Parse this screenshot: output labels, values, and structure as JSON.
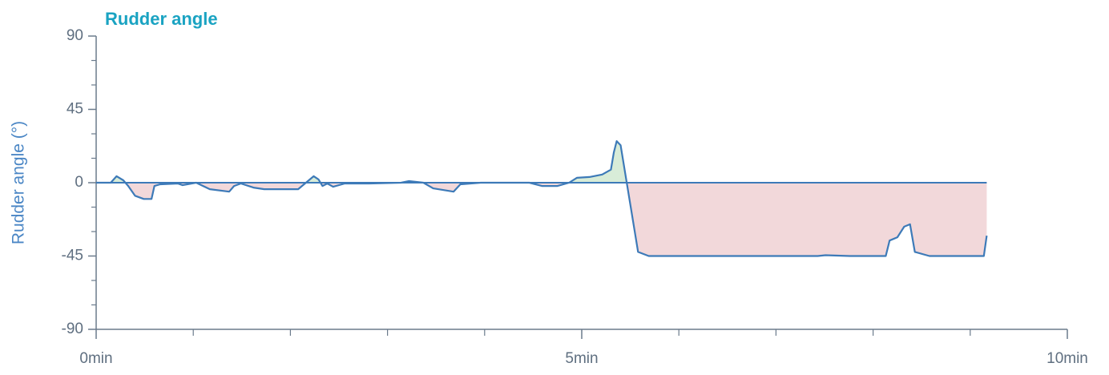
{
  "chart_data": {
    "type": "area-line",
    "title": "Rudder angle",
    "ylabel": "Rudder angle (°)",
    "x": [
      0,
      0.15,
      0.21,
      0.28,
      0.33,
      0.4,
      0.49,
      0.57,
      0.6,
      0.66,
      0.84,
      0.89,
      1.03,
      1.17,
      1.37,
      1.42,
      1.49,
      1.62,
      1.73,
      2.08,
      2.15,
      2.24,
      2.29,
      2.33,
      2.38,
      2.44,
      2.56,
      2.81,
      3.14,
      3.22,
      3.37,
      3.47,
      3.68,
      3.75,
      3.96,
      4.46,
      4.59,
      4.75,
      4.87,
      4.95,
      5.08,
      5.21,
      5.3,
      5.33,
      5.36,
      5.4,
      5.58,
      5.69,
      7.43,
      7.51,
      7.76,
      8.13,
      8.17,
      8.25,
      8.32,
      8.38,
      8.43,
      8.58,
      9.14,
      9.17
    ],
    "values": [
      0,
      0,
      4,
      1.5,
      -2,
      -8,
      -10,
      -10,
      -2,
      -1,
      -0.5,
      -1.5,
      0,
      -4,
      -5.5,
      -2,
      -0.5,
      -3,
      -4,
      -4,
      -0.5,
      4,
      2,
      -2,
      -0.5,
      -2.5,
      -0.5,
      -0.5,
      0,
      1,
      0,
      -3.5,
      -5.5,
      -1,
      0,
      0,
      -2,
      -2,
      0,
      3,
      3.5,
      5,
      8,
      18.5,
      25.5,
      23,
      -42.5,
      -45,
      -45,
      -44.5,
      -45,
      -45,
      -35.5,
      -33.5,
      -27,
      -25.5,
      -42.5,
      -45,
      -45,
      -32.5
    ],
    "color": "#3d7ab8",
    "positive_fill": "#d8ecd8",
    "negative_fill": "#f2d8da",
    "xlim": [
      0,
      10
    ],
    "xticks": [
      {
        "value": 0,
        "label": "0min"
      },
      {
        "value": 5,
        "label": "5min"
      },
      {
        "value": 10,
        "label": "10min"
      }
    ],
    "xminorticks": [
      1,
      2,
      3,
      4,
      6,
      7,
      8,
      9
    ],
    "ylim": [
      -90,
      90
    ],
    "yticks": [
      -90,
      -45,
      0,
      45,
      90
    ],
    "yminorticks": [
      -75,
      -60,
      -30,
      -15,
      15,
      30,
      60,
      75
    ]
  }
}
